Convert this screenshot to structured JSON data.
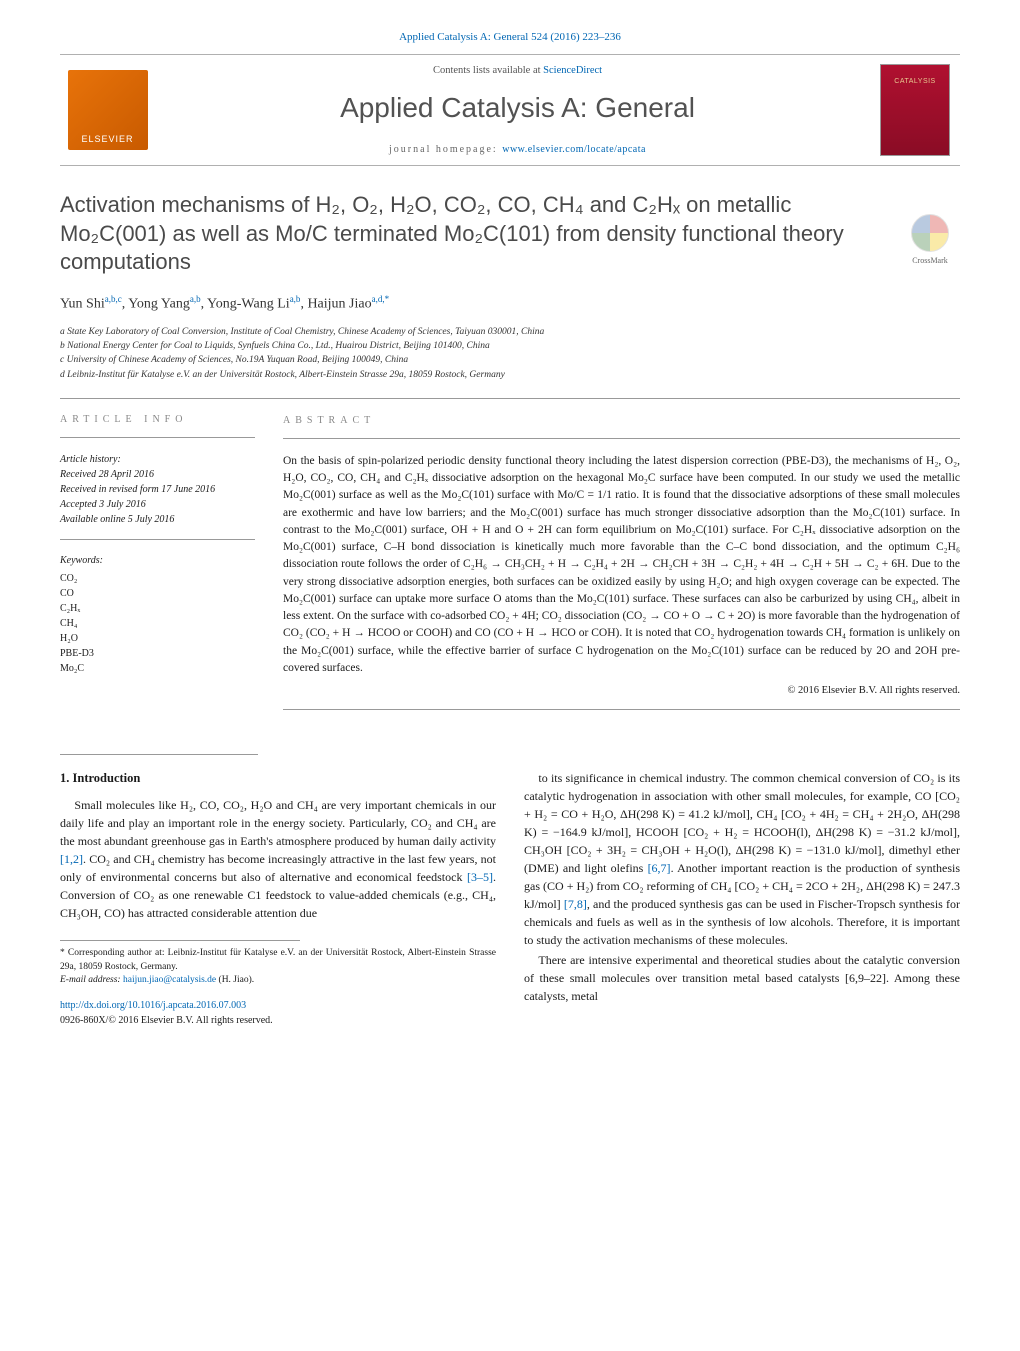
{
  "journal_citation": "Applied Catalysis A: General 524 (2016) 223–236",
  "banner": {
    "publisher_logo_text": "ELSEVIER",
    "contents_prefix": "Contents lists available at ",
    "contents_link": "ScienceDirect",
    "journal_title": "Applied Catalysis A: General",
    "homepage_prefix": "journal homepage: ",
    "homepage_url": "www.elsevier.com/locate/apcata",
    "cover_text": "CATALYSIS"
  },
  "crossmark_label": "CrossMark",
  "article": {
    "title": "Activation mechanisms of H₂, O₂, H₂O, CO₂, CO, CH₄ and C₂Hₓ on metallic Mo₂C(001) as well as Mo/C terminated Mo₂C(101) from density functional theory computations",
    "authors_html": "Yun Shi<sup>a,b,c</sup>, Yong Yang<sup>a,b</sup>, Yong-Wang Li<sup>a,b</sup>, Haijun Jiao<sup>a,d,*</sup>",
    "affiliations": [
      "a State Key Laboratory of Coal Conversion, Institute of Coal Chemistry, Chinese Academy of Sciences, Taiyuan 030001, China",
      "b National Energy Center for Coal to Liquids, Synfuels China Co., Ltd., Huairou District, Beijing 101400, China",
      "c University of Chinese Academy of Sciences, No.19A Yuquan Road, Beijing 100049, China",
      "d Leibniz-Institut für Katalyse e.V. an der Universität Rostock, Albert-Einstein Strasse 29a, 18059 Rostock, Germany"
    ]
  },
  "article_info": {
    "heading": "ARTICLE INFO",
    "history_label": "Article history:",
    "history": [
      "Received 28 April 2016",
      "Received in revised form 17 June 2016",
      "Accepted 3 July 2016",
      "Available online 5 July 2016"
    ],
    "keywords_label": "Keywords:",
    "keywords": [
      "CO₂",
      "CO",
      "C₂Hₓ",
      "CH₄",
      "H₂O",
      "PBE-D3",
      "Mo₂C"
    ]
  },
  "abstract": {
    "heading": "ABSTRACT",
    "text": "On the basis of spin-polarized periodic density functional theory including the latest dispersion correction (PBE-D3), the mechanisms of H₂, O₂, H₂O, CO₂, CO, CH₄ and C₂Hₓ dissociative adsorption on the hexagonal Mo₂C surface have been computed. In our study we used the metallic Mo₂C(001) surface as well as the Mo₂C(101) surface with Mo/C = 1/1 ratio. It is found that the dissociative adsorptions of these small molecules are exothermic and have low barriers; and the Mo₂C(001) surface has much stronger dissociative adsorption than the Mo₂C(101) surface. In contrast to the Mo₂C(001) surface, OH + H and O + 2H can form equilibrium on Mo₂C(101) surface. For C₂Hₓ dissociative adsorption on the Mo₂C(001) surface, C–H bond dissociation is kinetically much more favorable than the C–C bond dissociation, and the optimum C₂H₆ dissociation route follows the order of C₂H₆ → CH₃CH₂ + H → C₂H₄ + 2H → CH₂CH + 3H → C₂H₂ + 4H → C₂H + 5H → C₂ + 6H. Due to the very strong dissociative adsorption energies, both surfaces can be oxidized easily by using H₂O; and high oxygen coverage can be expected. The Mo₂C(001) surface can uptake more surface O atoms than the Mo₂C(101) surface. These surfaces can also be carburized by using CH₄, albeit in less extent. On the surface with co-adsorbed CO₂ + 4H; CO₂ dissociation (CO₂ → CO + O → C + 2O) is more favorable than the hydrogenation of CO₂ (CO₂ + H → HCOO or COOH) and CO (CO + H → HCO or COH). It is noted that CO₂ hydrogenation towards CH₄ formation is unlikely on the Mo₂C(001) surface, while the effective barrier of surface C hydrogenation on the Mo₂C(101) surface can be reduced by 2O and 2OH pre-covered surfaces.",
    "copyright": "© 2016 Elsevier B.V. All rights reserved."
  },
  "body": {
    "section_heading": "1. Introduction",
    "para1": "Small molecules like H₂, CO, CO₂, H₂O and CH₄ are very important chemicals in our daily life and play an important role in the energy society. Particularly, CO₂ and CH₄ are the most abundant greenhouse gas in Earth's atmosphere produced by human daily activity [1,2]. CO₂ and CH₄ chemistry has become increasingly attractive in the last few years, not only of environmental concerns but also of alternative and economical feedstock [3–5]. Conversion of CO₂ as one renewable C1 feedstock to value-added chemicals (e.g., CH₄, CH₃OH, CO) has attracted considerable attention due",
    "para2": "to its significance in chemical industry. The common chemical conversion of CO₂ is its catalytic hydrogenation in association with other small molecules, for example, CO [CO₂ + H₂ = CO + H₂O, ΔH(298 K) = 41.2 kJ/mol], CH₄ [CO₂ + 4H₂ = CH₄ + 2H₂O, ΔH(298 K) = −164.9 kJ/mol], HCOOH [CO₂ + H₂ = HCOOH(l), ΔH(298 K) = −31.2 kJ/mol], CH₃OH [CO₂ + 3H₂ = CH₃OH + H₂O(l), ΔH(298 K) = −131.0 kJ/mol], dimethyl ether (DME) and light olefins [6,7]. Another important reaction is the production of synthesis gas (CO + H₂) from CO₂ reforming of CH₄ [CO₂ + CH₄ = 2CO + 2H₂, ΔH(298 K) = 247.3 kJ/mol] [7,8], and the produced synthesis gas can be used in Fischer-Tropsch synthesis for chemicals and fuels as well as in the synthesis of low alcohols. Therefore, it is important to study the activation mechanisms of these molecules.",
    "para3": "There are intensive experimental and theoretical studies about the catalytic conversion of these small molecules over transition metal based catalysts [6,9–22]. Among these catalysts, metal"
  },
  "footnotes": {
    "corresp": "* Corresponding author at: Leibniz-Institut für Katalyse e.V. an der Universität Rostock, Albert-Einstein Strasse 29a, 18059 Rostock, Germany.",
    "email_label": "E-mail address: ",
    "email": "haijun.jiao@catalysis.de",
    "email_who": " (H. Jiao)."
  },
  "doi": {
    "url": "http://dx.doi.org/10.1016/j.apcata.2016.07.003",
    "issn_line": "0926-860X/© 2016 Elsevier B.V. All rights reserved."
  },
  "colors": {
    "link": "#0066b3",
    "rule": "#999999",
    "title_gray": "#4a4a4a",
    "text": "#1a1a1a"
  }
}
